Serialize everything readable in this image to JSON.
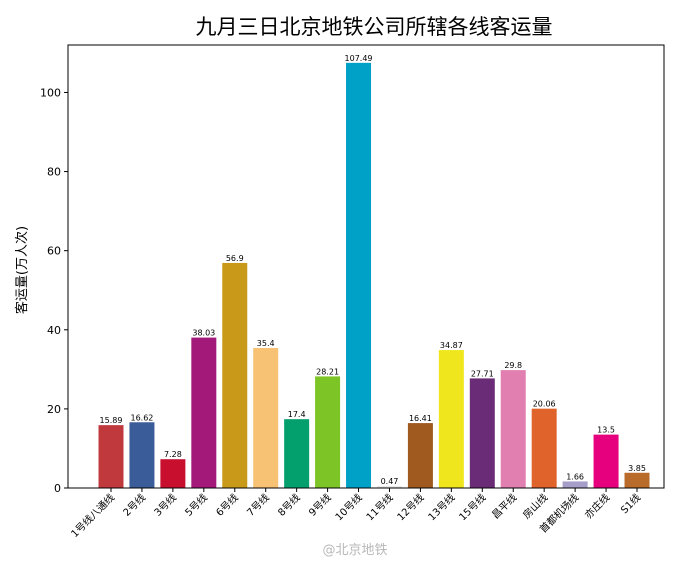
{
  "chart_data": {
    "type": "bar",
    "title": "九月三日北京地铁公司所辖各线客运量",
    "xlabel": "",
    "ylabel": "客运量(万人次)",
    "ylim": [
      0,
      112
    ],
    "yticks": [
      0,
      20,
      40,
      60,
      80,
      100
    ],
    "grid": false,
    "categories": [
      "1号线八通线",
      "2号线",
      "3号线",
      "5号线",
      "6号线",
      "7号线",
      "8号线",
      "9号线",
      "10号线",
      "11号线",
      "12号线",
      "13号线",
      "15号线",
      "昌平线",
      "房山线",
      "首都机场线",
      "亦庄线",
      "S1线"
    ],
    "values": [
      15.89,
      16.62,
      7.28,
      38.03,
      56.9,
      35.4,
      17.4,
      28.21,
      107.49,
      0.47,
      16.41,
      34.87,
      27.71,
      29.8,
      20.06,
      1.66,
      13.5,
      3.85
    ],
    "value_labels": [
      "15.89",
      "16.62",
      "7.28",
      "38.03",
      "56.9",
      "35.4",
      "17.4",
      "28.21",
      "107.49",
      "0.47",
      "16.41",
      "34.87",
      "27.71",
      "29.8",
      "20.06",
      "1.66",
      "13.5",
      "3.85"
    ],
    "colors": [
      "#c0393d",
      "#3a5c99",
      "#c8102e",
      "#a3197a",
      "#c99a1a",
      "#f7c274",
      "#03a06d",
      "#7dc426",
      "#00a1c6",
      "#e6e6e6",
      "#a05a1f",
      "#f0e61e",
      "#6b2c77",
      "#e07fb0",
      "#e0632c",
      "#a69ec8",
      "#e6007e",
      "#b86b2a"
    ]
  },
  "watermark": "@北京地铁"
}
